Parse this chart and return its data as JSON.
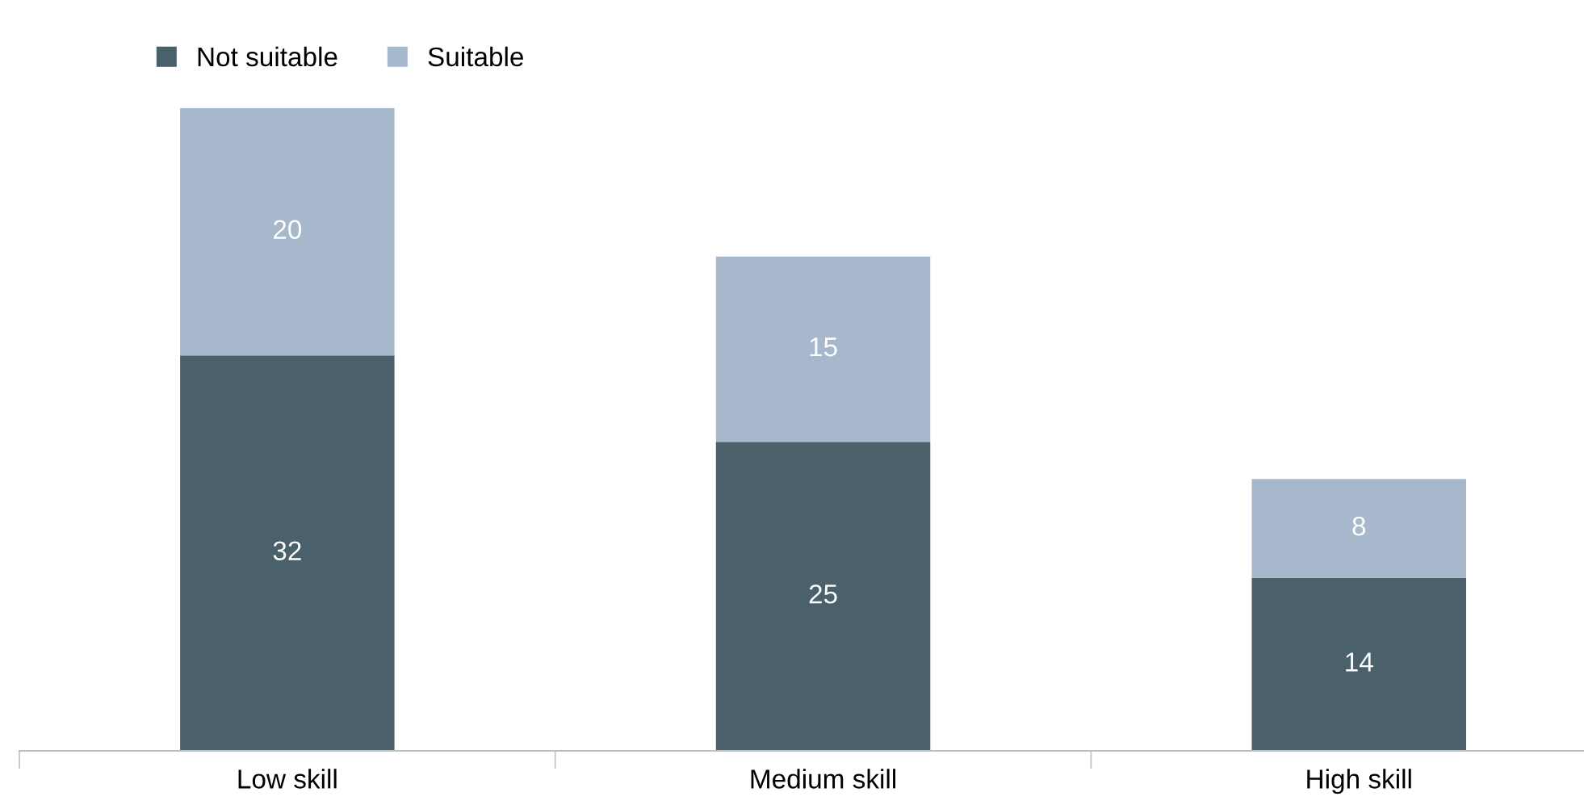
{
  "chart_data": {
    "type": "bar",
    "stacked": true,
    "categories": [
      "Low skill",
      "Medium skill",
      "High skill"
    ],
    "series": [
      {
        "name": "Not suitable",
        "color": "#4a606b",
        "values": [
          32,
          25,
          14
        ]
      },
      {
        "name": "Suitable",
        "color": "#a7b8cc",
        "values": [
          20,
          15,
          8
        ]
      }
    ],
    "data_labels": true,
    "legend": "top left",
    "grid": false,
    "tick_labels": "x"
  }
}
